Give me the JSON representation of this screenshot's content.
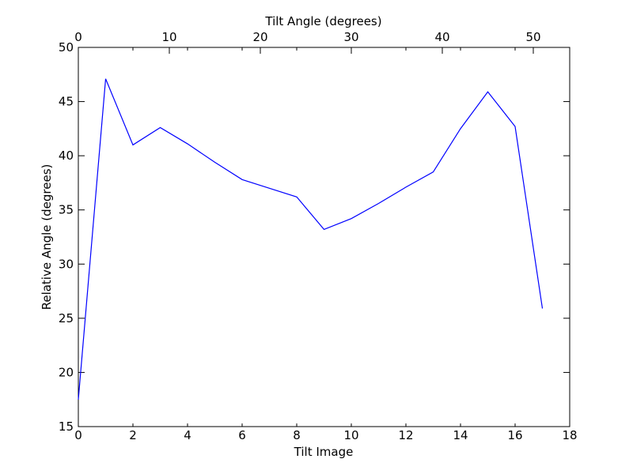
{
  "chart_data": {
    "type": "line",
    "title": "",
    "xlabel": "Tilt Image",
    "ylabel": "Relative Angle (degrees)",
    "x2label": "Tilt Angle (degrees)",
    "xlim": [
      0,
      18
    ],
    "ylim": [
      15,
      50
    ],
    "x2lim": [
      0,
      54
    ],
    "xticks": [
      "0",
      "2",
      "4",
      "6",
      "8",
      "10",
      "12",
      "14",
      "16",
      "18"
    ],
    "yticks": [
      "15",
      "20",
      "25",
      "30",
      "35",
      "40",
      "45",
      "50"
    ],
    "x2ticks": [
      "0",
      "10",
      "20",
      "30",
      "40",
      "50"
    ],
    "grid": false,
    "line_color": "#0000ff",
    "series": [
      {
        "x": [
          0,
          1,
          2,
          3,
          4,
          5,
          6,
          7,
          8,
          9,
          10,
          11,
          12,
          13,
          14,
          15,
          16,
          17
        ],
        "values": [
          17.5,
          47.1,
          41.0,
          42.6,
          41.1,
          39.4,
          37.8,
          37.0,
          36.2,
          33.2,
          34.2,
          35.6,
          37.1,
          38.5,
          42.5,
          45.9,
          42.7,
          25.9
        ]
      }
    ]
  }
}
